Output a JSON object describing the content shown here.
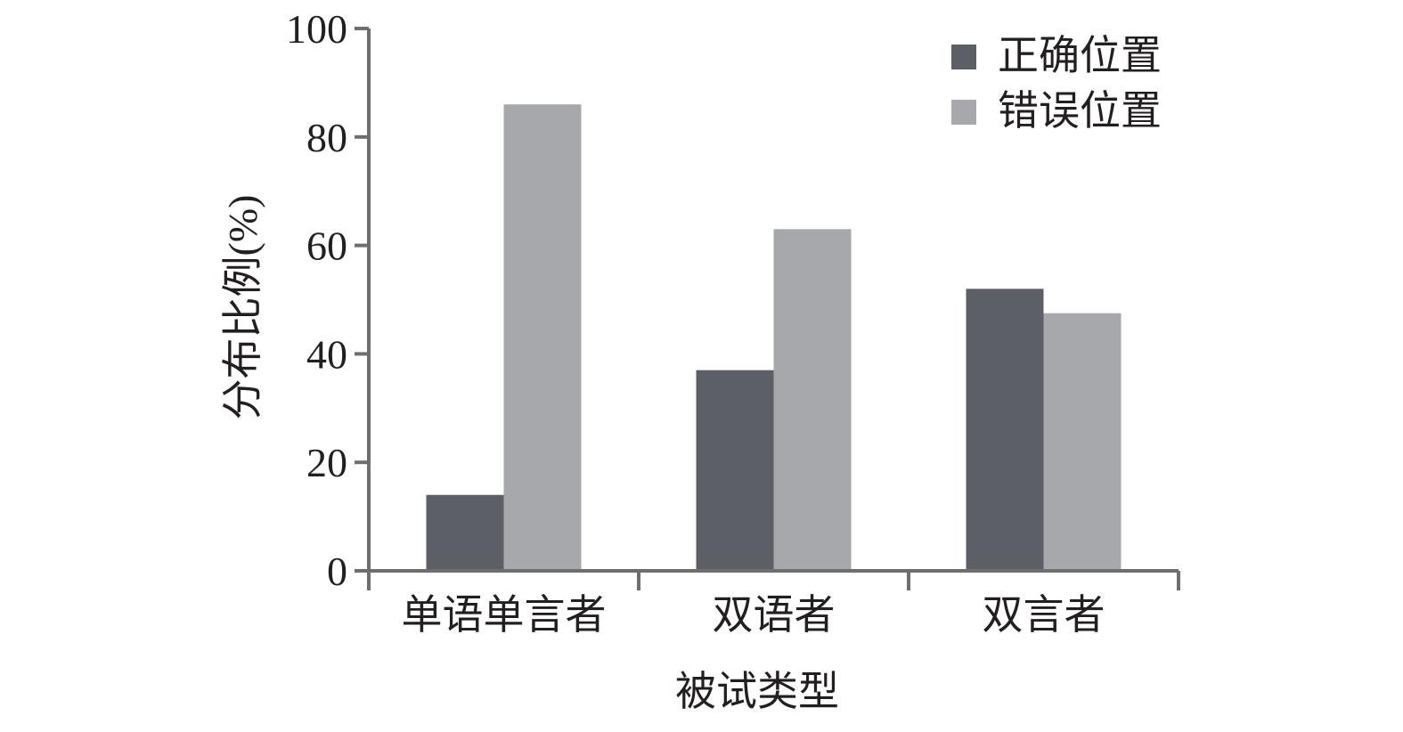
{
  "chart_data": {
    "type": "bar",
    "categories": [
      "单语单言者",
      "双语者",
      "双言者"
    ],
    "series": [
      {
        "name": "正确位置",
        "values": [
          14,
          37,
          52
        ],
        "color": "#5d5f66"
      },
      {
        "name": "错误位置",
        "values": [
          86,
          63,
          47.5
        ],
        "color": "#a7a8ac"
      }
    ],
    "xlabel": "被试类型",
    "ylabel": "分布比例(%)",
    "ylim": [
      0,
      100
    ],
    "yticks": [
      "0",
      "20",
      "40",
      "60",
      "80",
      "100"
    ],
    "grid": false,
    "legend_position": "top-right",
    "axis_color": "#6d6e71"
  }
}
